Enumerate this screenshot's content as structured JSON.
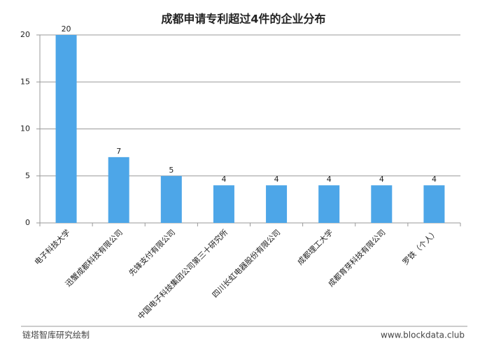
{
  "chart_data": {
    "type": "bar",
    "title": "成都申请专利超过4件的企业分布",
    "categories": [
      "电子科技大学",
      "迅蟹成都科技有限公司",
      "先锋支付有限公司",
      "中国电子科技集团公司第三十研究所",
      "四川长虹电器股份有限公司",
      "成都理工大学",
      "成都育芽科技有限公司",
      "罗铁（个人）"
    ],
    "values": [
      20,
      7,
      5,
      4,
      4,
      4,
      4,
      4
    ],
    "color": "#4da6e8",
    "ylim": [
      0,
      20
    ],
    "yticks": [
      0,
      5,
      10,
      15,
      20
    ],
    "grid": true
  },
  "footer": {
    "left": "链塔智库研究绘制",
    "right": "www.blockdata.club"
  }
}
